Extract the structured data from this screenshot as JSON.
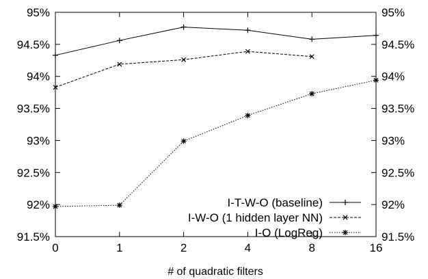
{
  "chart_data": {
    "type": "line",
    "title": "",
    "xlabel": "# of quadratic filters",
    "ylabel": "",
    "categories": [
      "0",
      "1",
      "2",
      "4",
      "8",
      "16"
    ],
    "y_ticks": [
      "91.5%",
      "92%",
      "92.5%",
      "93%",
      "93.5%",
      "94%",
      "94.5%",
      "95%"
    ],
    "ylim": [
      91.5,
      95.0
    ],
    "grid": false,
    "legend_position": "bottom-right",
    "series": [
      {
        "name": "I-T-W-O (baseline)",
        "values": [
          94.33,
          94.56,
          94.77,
          94.72,
          94.58,
          94.64
        ],
        "line_style": "solid",
        "marker": "plus"
      },
      {
        "name": "I-W-O (1 hidden layer NN)",
        "values": [
          93.83,
          94.19,
          94.26,
          94.39,
          94.31,
          null
        ],
        "line_style": "dashed",
        "marker": "x"
      },
      {
        "name": "I-O (LogReg)",
        "values": [
          91.97,
          91.99,
          92.99,
          93.39,
          93.73,
          93.94
        ],
        "line_style": "dotted",
        "marker": "star"
      }
    ]
  }
}
